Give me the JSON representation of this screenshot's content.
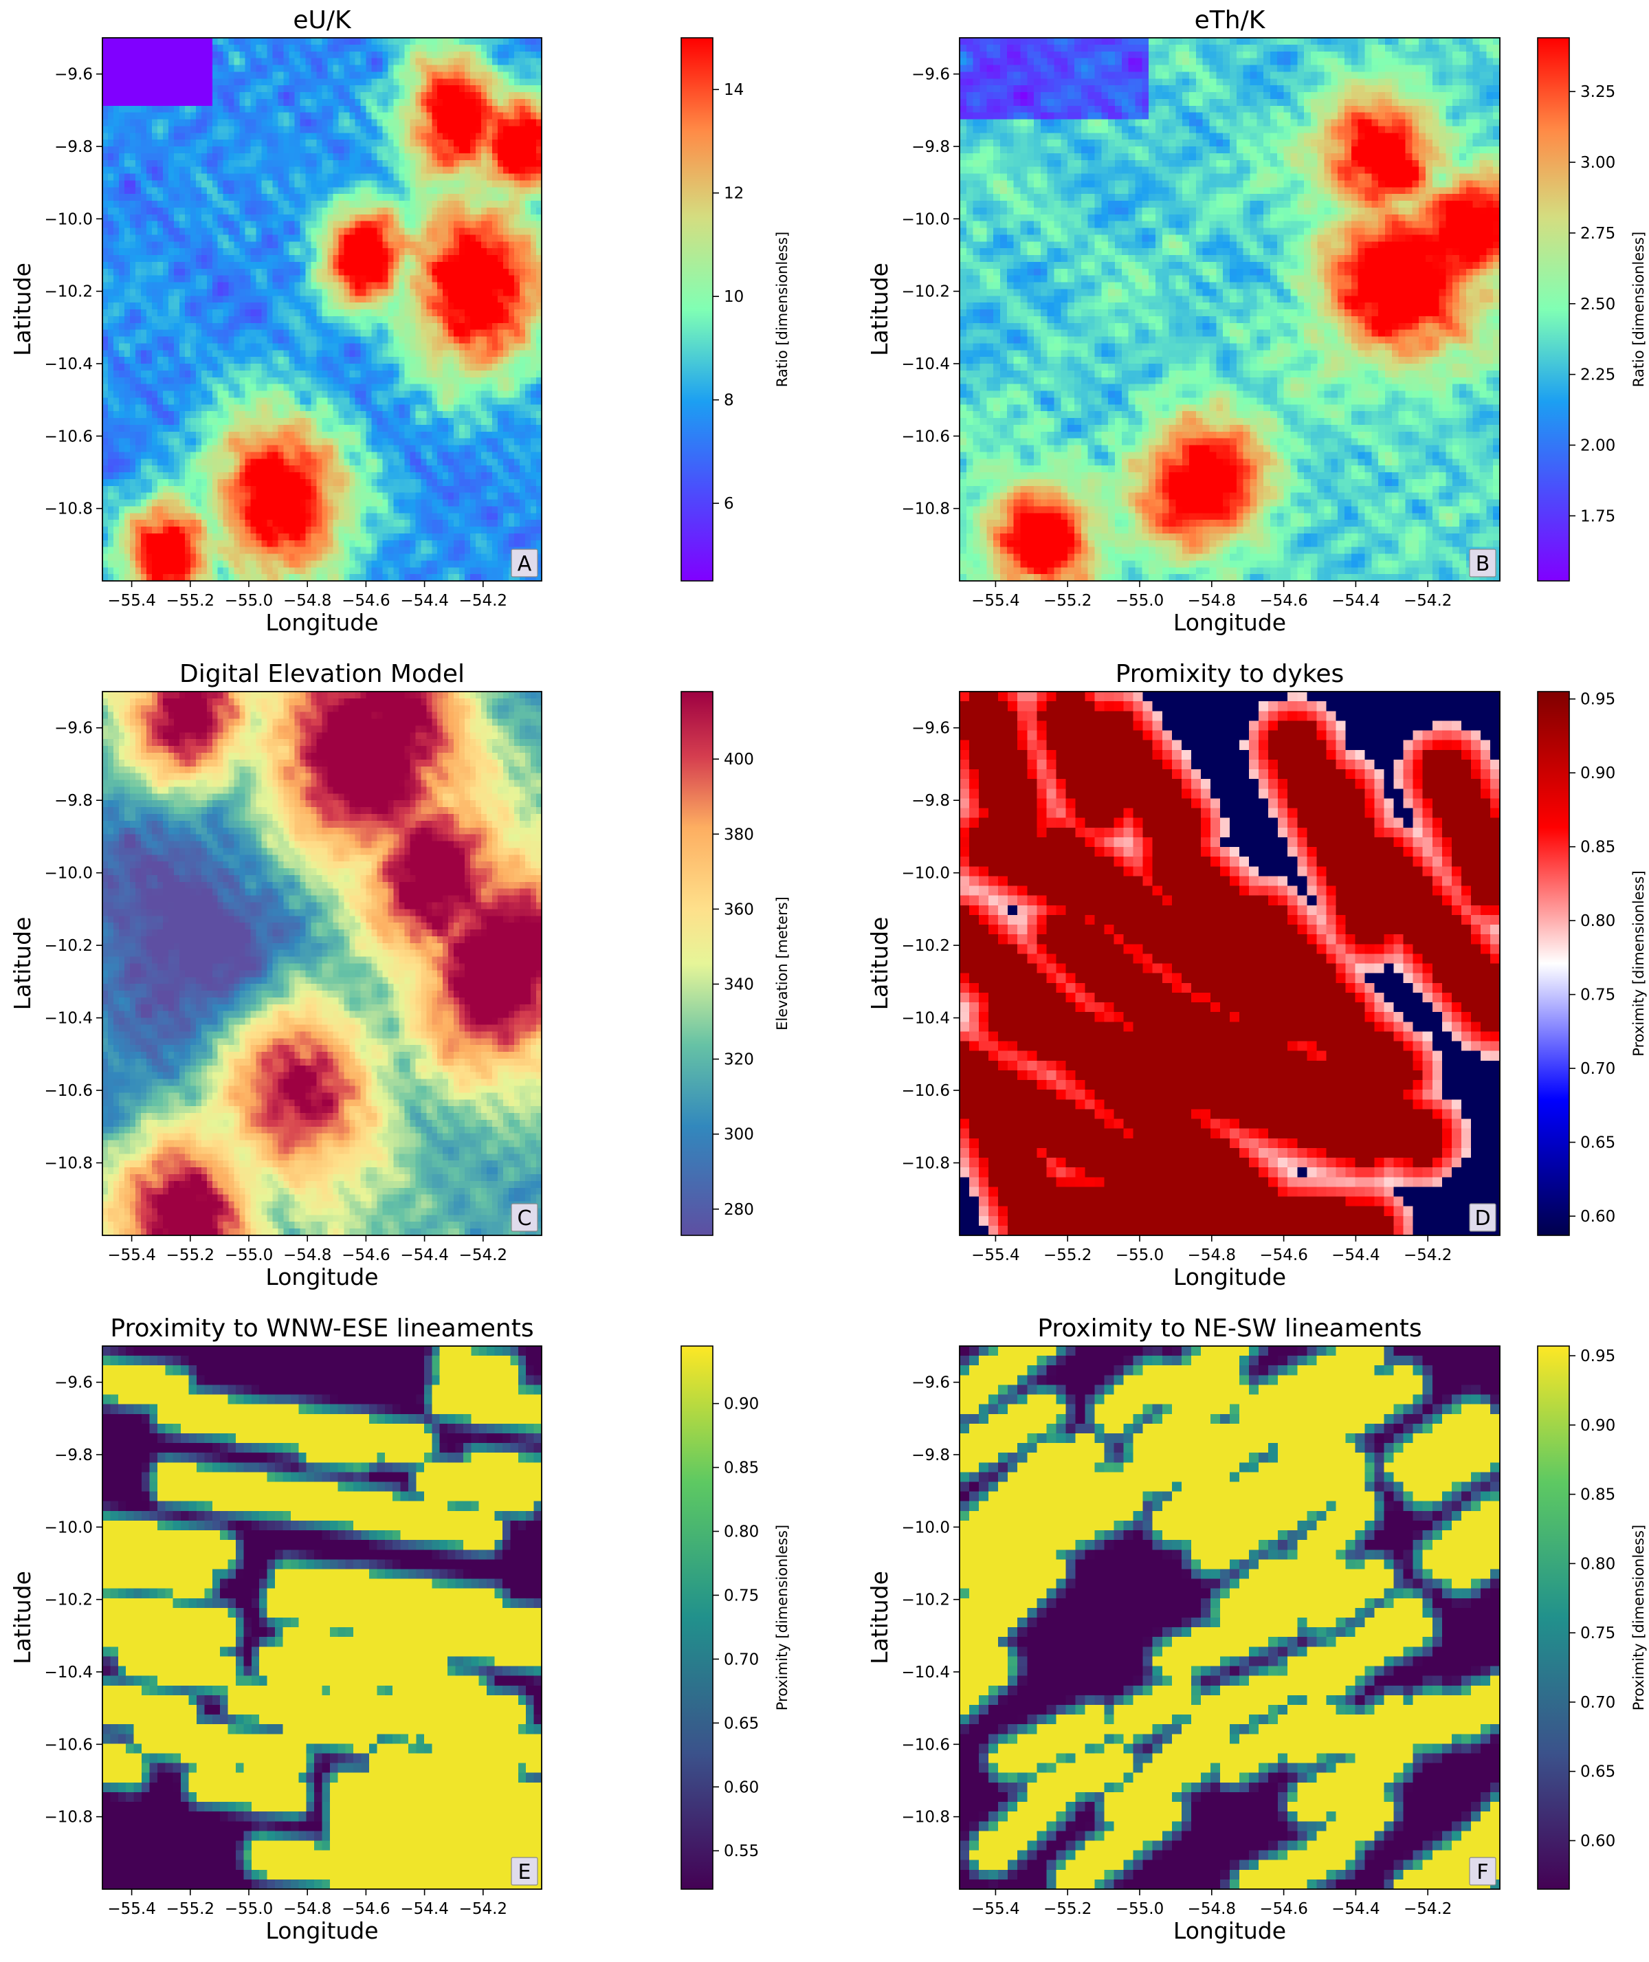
{
  "figure": {
    "xtick_labels": [
      "−55.4",
      "−55.2",
      "−55.0",
      "−54.8",
      "−54.6",
      "−54.4",
      "−54.2"
    ],
    "ytick_labels": [
      "−9.6",
      "−9.8",
      "−10.0",
      "−10.2",
      "−10.4",
      "−10.6",
      "−10.8"
    ]
  },
  "chart_data": [
    {
      "type": "heatmap",
      "panel_label": "A",
      "title": "eU/K",
      "xlabel": "Longitude",
      "ylabel": "Latitude",
      "xlim": [
        -55.5,
        -54.0
      ],
      "ylim": [
        -11.0,
        -9.5
      ],
      "xticks": [
        -55.4,
        -55.2,
        -55.0,
        -54.8,
        -54.6,
        -54.4,
        -54.2
      ],
      "yticks": [
        -9.6,
        -9.8,
        -10.0,
        -10.2,
        -10.4,
        -10.6,
        -10.8
      ],
      "colormap": "rainbow",
      "colorbar": {
        "label": "Ratio [dimensionless]",
        "min": 4.5,
        "max": 15.0,
        "ticks": [
          6,
          8,
          10,
          12,
          14
        ]
      }
    },
    {
      "type": "heatmap",
      "panel_label": "B",
      "title": "eTh/K",
      "xlabel": "Longitude",
      "ylabel": "Latitude",
      "xlim": [
        -55.5,
        -54.0
      ],
      "ylim": [
        -11.0,
        -9.5
      ],
      "xticks": [
        -55.4,
        -55.2,
        -55.0,
        -54.8,
        -54.6,
        -54.4,
        -54.2
      ],
      "yticks": [
        -9.6,
        -9.8,
        -10.0,
        -10.2,
        -10.4,
        -10.6,
        -10.8
      ],
      "colormap": "rainbow",
      "colorbar": {
        "label": "Ratio [dimensionless]",
        "min": 1.52,
        "max": 3.44,
        "ticks": [
          1.75,
          2.0,
          2.25,
          2.5,
          2.75,
          3.0,
          3.25
        ]
      }
    },
    {
      "type": "heatmap",
      "panel_label": "C",
      "title": "Digital Elevation Model",
      "xlabel": "Longitude",
      "ylabel": "Latitude",
      "xlim": [
        -55.5,
        -54.0
      ],
      "ylim": [
        -11.0,
        -9.5
      ],
      "xticks": [
        -55.4,
        -55.2,
        -55.0,
        -54.8,
        -54.6,
        -54.4,
        -54.2
      ],
      "yticks": [
        -9.6,
        -9.8,
        -10.0,
        -10.2,
        -10.4,
        -10.6,
        -10.8
      ],
      "colormap": "Spectral_r",
      "colorbar": {
        "label": "Elevation [meters]",
        "min": 273,
        "max": 418,
        "ticks": [
          280,
          300,
          320,
          340,
          360,
          380,
          400
        ]
      }
    },
    {
      "type": "heatmap",
      "panel_label": "D",
      "title": "Promixity to dykes",
      "xlabel": "Longitude",
      "ylabel": "Latitude",
      "xlim": [
        -55.5,
        -54.0
      ],
      "ylim": [
        -11.0,
        -9.5
      ],
      "xticks": [
        -55.4,
        -55.2,
        -55.0,
        -54.8,
        -54.6,
        -54.4,
        -54.2
      ],
      "yticks": [
        -9.6,
        -9.8,
        -10.0,
        -10.2,
        -10.4,
        -10.6,
        -10.8
      ],
      "colormap": "seismic",
      "colorbar": {
        "label": "Proximity [dimensionless]",
        "min": 0.587,
        "max": 0.955,
        "ticks": [
          0.6,
          0.65,
          0.7,
          0.75,
          0.8,
          0.85,
          0.9,
          0.95
        ]
      }
    },
    {
      "type": "heatmap",
      "panel_label": "E",
      "title": "Proximity to WNW-ESE lineaments",
      "xlabel": "Longitude",
      "ylabel": "Latitude",
      "xlim": [
        -55.5,
        -54.0
      ],
      "ylim": [
        -11.0,
        -9.5
      ],
      "xticks": [
        -55.4,
        -55.2,
        -55.0,
        -54.8,
        -54.6,
        -54.4,
        -54.2
      ],
      "yticks": [
        -9.6,
        -9.8,
        -10.0,
        -10.2,
        -10.4,
        -10.6,
        -10.8
      ],
      "colormap": "viridis",
      "colorbar": {
        "label": "Proximity [dimensionless]",
        "min": 0.52,
        "max": 0.945,
        "ticks": [
          0.55,
          0.6,
          0.65,
          0.7,
          0.75,
          0.8,
          0.85,
          0.9
        ]
      }
    },
    {
      "type": "heatmap",
      "panel_label": "F",
      "title": "Proximity to NE-SW lineaments",
      "xlabel": "Longitude",
      "ylabel": "Latitude",
      "xlim": [
        -55.5,
        -54.0
      ],
      "ylim": [
        -11.0,
        -9.5
      ],
      "xticks": [
        -55.4,
        -55.2,
        -55.0,
        -54.8,
        -54.6,
        -54.4,
        -54.2
      ],
      "yticks": [
        -9.6,
        -9.8,
        -10.0,
        -10.2,
        -10.4,
        -10.6,
        -10.8
      ],
      "colormap": "viridis",
      "colorbar": {
        "label": "Proximity [dimensionless]",
        "min": 0.565,
        "max": 0.957,
        "ticks": [
          0.6,
          0.65,
          0.7,
          0.75,
          0.8,
          0.85,
          0.9,
          0.95
        ]
      }
    }
  ]
}
